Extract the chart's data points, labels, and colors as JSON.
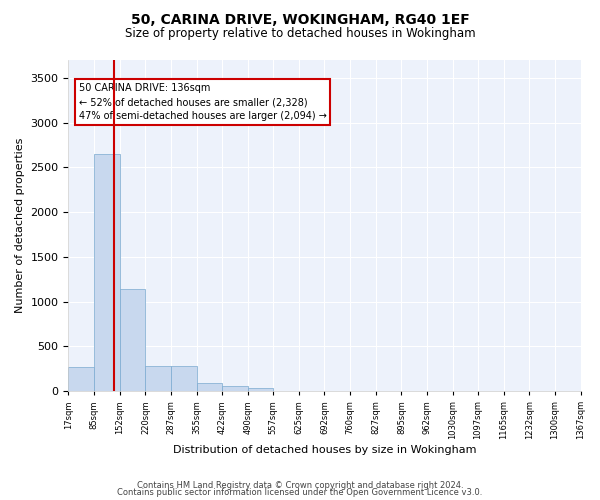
{
  "title": "50, CARINA DRIVE, WOKINGHAM, RG40 1EF",
  "subtitle": "Size of property relative to detached houses in Wokingham",
  "xlabel": "Distribution of detached houses by size in Wokingham",
  "ylabel": "Number of detached properties",
  "bar_color": "#c8d8ee",
  "bar_edge_color": "#7aaad0",
  "background_color": "#edf2fb",
  "grid_color": "#ffffff",
  "annotation_box_text": "50 CARINA DRIVE: 136sqm\n← 52% of detached houses are smaller (2,328)\n47% of semi-detached houses are larger (2,094) →",
  "annotation_box_color": "#cc0000",
  "property_line_x": 136,
  "property_line_color": "#cc0000",
  "bin_edges": [
    17,
    85,
    152,
    220,
    287,
    355,
    422,
    490,
    557,
    625,
    692,
    760,
    827,
    895,
    962,
    1030,
    1097,
    1165,
    1232,
    1300,
    1367
  ],
  "bin_labels": [
    "17sqm",
    "85sqm",
    "152sqm",
    "220sqm",
    "287sqm",
    "355sqm",
    "422sqm",
    "490sqm",
    "557sqm",
    "625sqm",
    "692sqm",
    "760sqm",
    "827sqm",
    "895sqm",
    "962sqm",
    "1030sqm",
    "1097sqm",
    "1165sqm",
    "1232sqm",
    "1300sqm",
    "1367sqm"
  ],
  "bar_heights": [
    270,
    2650,
    1140,
    285,
    285,
    90,
    55,
    35,
    0,
    0,
    0,
    0,
    0,
    0,
    0,
    0,
    0,
    0,
    0,
    0
  ],
  "ylim": [
    0,
    3700
  ],
  "yticks": [
    0,
    500,
    1000,
    1500,
    2000,
    2500,
    3000,
    3500
  ],
  "footnote1": "Contains HM Land Registry data © Crown copyright and database right 2024.",
  "footnote2": "Contains public sector information licensed under the Open Government Licence v3.0."
}
